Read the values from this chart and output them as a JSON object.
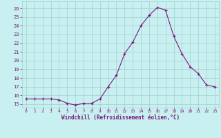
{
  "x": [
    0,
    1,
    2,
    3,
    4,
    5,
    6,
    7,
    8,
    9,
    10,
    11,
    12,
    13,
    14,
    15,
    16,
    17,
    18,
    19,
    20,
    21,
    22,
    23
  ],
  "y": [
    15.6,
    15.6,
    15.6,
    15.6,
    15.5,
    15.1,
    14.9,
    15.1,
    15.1,
    15.6,
    17.0,
    18.3,
    20.8,
    22.1,
    24.0,
    25.2,
    26.1,
    25.8,
    22.8,
    20.8,
    19.3,
    18.5,
    17.2,
    17.0
  ],
  "line_color": "#7b1a7b",
  "marker": "+",
  "marker_color": "#7b1a7b",
  "bg_color": "#c8f0f0",
  "grid_color": "#a0cece",
  "xlabel": "Windchill (Refroidissement éolien,°C)",
  "xlabel_color": "#7b1a7b",
  "tick_color": "#7b1a7b",
  "ylim": [
    14.6,
    26.8
  ],
  "xlim": [
    -0.5,
    23.5
  ],
  "yticks": [
    15,
    16,
    17,
    18,
    19,
    20,
    21,
    22,
    23,
    24,
    25,
    26
  ],
  "xticks": [
    0,
    1,
    2,
    3,
    4,
    5,
    6,
    7,
    8,
    9,
    10,
    11,
    12,
    13,
    14,
    15,
    16,
    17,
    18,
    19,
    20,
    21,
    22,
    23
  ],
  "figsize": [
    3.2,
    2.0
  ],
  "dpi": 100
}
